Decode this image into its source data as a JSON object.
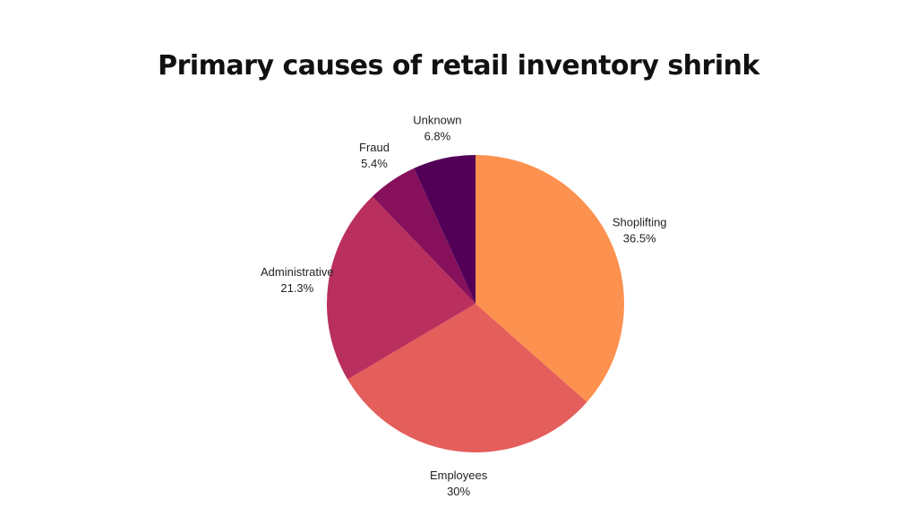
{
  "chart_data": {
    "type": "pie",
    "title": "Primary causes of retail inventory shrink",
    "slices": [
      {
        "label": "Shoplifting",
        "value": 36.5,
        "value_label": "36.5%",
        "color": "#FD914F"
      },
      {
        "label": "Employees",
        "value": 30,
        "value_label": "30%",
        "color": "#E45E5C"
      },
      {
        "label": "Administrative",
        "value": 21.3,
        "value_label": "21.3%",
        "color": "#B92F5D"
      },
      {
        "label": "Fraud",
        "value": 5.4,
        "value_label": "5.4%",
        "color": "#86105B"
      },
      {
        "label": "Unknown",
        "value": 6.8,
        "value_label": "6.8%",
        "color": "#520057"
      }
    ],
    "start_angle": "12 o'clock",
    "direction": "clockwise",
    "legend": "none"
  }
}
